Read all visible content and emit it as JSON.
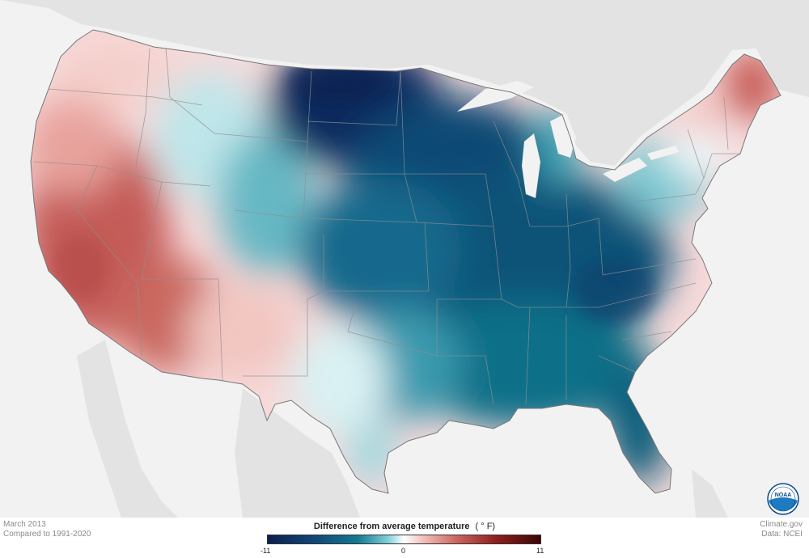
{
  "caption": {
    "date": "March 2013",
    "baseline": "Compared to 1991-2020"
  },
  "credits": {
    "site": "Climate.gov",
    "source": "Data: NCEI"
  },
  "legend": {
    "title": "Difference from average temperature",
    "unit": "( ° F)",
    "min_label": "-11",
    "mid_label": "0",
    "max_label": "11",
    "range": [
      -11,
      11
    ],
    "colors": [
      "#0b1f4f",
      "#114a7a",
      "#137a92",
      "#7ecfd9",
      "#ffffff",
      "#f0b8b2",
      "#c9605a",
      "#8e1e1e",
      "#3d0606"
    ]
  },
  "logo": {
    "text": "NOAA",
    "color": "#0a4a8c"
  },
  "map": {
    "background_color": "#f2f2f2",
    "land_outside_color": "#e0e0e0",
    "border_color": "#888888",
    "pattern_summary": {
      "west": "warmer than average",
      "southwest": "warmer than average",
      "northern_plains": "much colder than average",
      "southeast": "colder than average",
      "maine": "warmer than average"
    }
  }
}
